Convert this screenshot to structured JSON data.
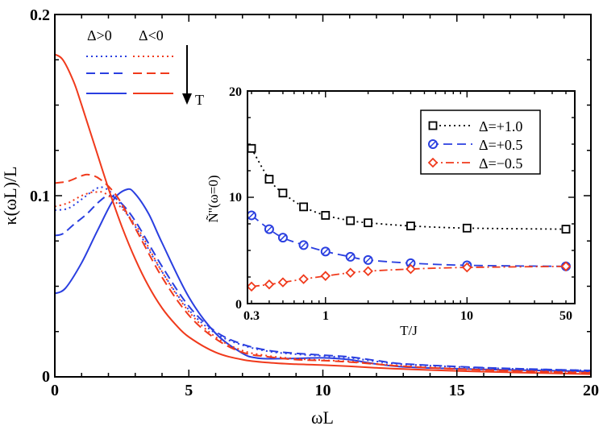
{
  "chart_data": [
    {
      "type": "line",
      "xlabel": "ωL",
      "ylabel": "κ(ωL)/L",
      "xlim": [
        0,
        20
      ],
      "ylim": [
        0,
        0.2
      ],
      "x_ticks": [
        "0",
        "5",
        "10",
        "15",
        "20"
      ],
      "y_ticks": [
        "0",
        "0.1",
        "0.2"
      ],
      "legend": {
        "placement": "top-left",
        "col_headers": [
          "Δ>0",
          "Δ<0"
        ],
        "arrow_label": "T"
      },
      "colors": {
        "positive": "#2a3fe0",
        "negative": "#f03a1c"
      },
      "series": [
        {
          "group": "Δ>0",
          "style": "dotted",
          "points": [
            [
              0,
              0.092
            ],
            [
              0.5,
              0.093
            ],
            [
              1,
              0.098
            ],
            [
              1.5,
              0.1035
            ],
            [
              1.8,
              0.1045
            ],
            [
              2.2,
              0.1
            ],
            [
              3,
              0.083
            ],
            [
              4,
              0.058
            ],
            [
              5,
              0.037
            ],
            [
              6,
              0.024
            ],
            [
              7,
              0.0175
            ],
            [
              8,
              0.014
            ],
            [
              9,
              0.0125
            ],
            [
              10,
              0.0115
            ],
            [
              11,
              0.0105
            ],
            [
              12,
              0.0085
            ],
            [
              13,
              0.007
            ],
            [
              15,
              0.0055
            ],
            [
              17,
              0.0045
            ],
            [
              20,
              0.0035
            ]
          ]
        },
        {
          "group": "Δ>0",
          "style": "dashed",
          "points": [
            [
              0,
              0.078
            ],
            [
              0.3,
              0.079
            ],
            [
              0.7,
              0.084
            ],
            [
              1.2,
              0.09
            ],
            [
              1.6,
              0.096
            ],
            [
              2,
              0.1
            ],
            [
              2.4,
              0.097
            ],
            [
              3,
              0.086
            ],
            [
              4,
              0.061
            ],
            [
              5,
              0.039
            ],
            [
              6,
              0.025
            ],
            [
              7,
              0.018
            ],
            [
              8,
              0.0145
            ],
            [
              9,
              0.013
            ],
            [
              10,
              0.012
            ],
            [
              11,
              0.011
            ],
            [
              12,
              0.009
            ],
            [
              13,
              0.0072
            ],
            [
              15,
              0.0057
            ],
            [
              17,
              0.0046
            ],
            [
              20,
              0.0035
            ]
          ]
        },
        {
          "group": "Δ>0",
          "style": "solid",
          "points": [
            [
              0,
              0.046
            ],
            [
              0.4,
              0.049
            ],
            [
              1,
              0.063
            ],
            [
              1.6,
              0.081
            ],
            [
              2.2,
              0.098
            ],
            [
              2.7,
              0.1035
            ],
            [
              3,
              0.101
            ],
            [
              3.5,
              0.09
            ],
            [
              4,
              0.074
            ],
            [
              5,
              0.044
            ],
            [
              6,
              0.024
            ],
            [
              7,
              0.013
            ],
            [
              7.5,
              0.0105
            ],
            [
              8,
              0.01
            ],
            [
              9,
              0.0102
            ],
            [
              10,
              0.0105
            ],
            [
              11,
              0.0095
            ],
            [
              11.8,
              0.0075
            ],
            [
              13,
              0.0055
            ],
            [
              15,
              0.0045
            ],
            [
              17,
              0.0038
            ],
            [
              20,
              0.003
            ]
          ]
        },
        {
          "group": "Δ<0",
          "style": "dotted",
          "points": [
            [
              0,
              0.094
            ],
            [
              0.5,
              0.096
            ],
            [
              1,
              0.1
            ],
            [
              1.5,
              0.102
            ],
            [
              2,
              0.1
            ],
            [
              3,
              0.084
            ],
            [
              4,
              0.058
            ],
            [
              5,
              0.036
            ],
            [
              6,
              0.022
            ],
            [
              7,
              0.0145
            ],
            [
              8,
              0.0115
            ],
            [
              9,
              0.01
            ],
            [
              10,
              0.0092
            ],
            [
              11,
              0.0085
            ],
            [
              12,
              0.0072
            ],
            [
              13,
              0.006
            ],
            [
              15,
              0.0045
            ],
            [
              17,
              0.0035
            ],
            [
              20,
              0.0025
            ]
          ]
        },
        {
          "group": "Δ<0",
          "style": "dashed",
          "points": [
            [
              0,
              0.107
            ],
            [
              0.5,
              0.108
            ],
            [
              1,
              0.111
            ],
            [
              1.3,
              0.1115
            ],
            [
              1.7,
              0.109
            ],
            [
              2.3,
              0.1
            ],
            [
              3,
              0.082
            ],
            [
              4,
              0.055
            ],
            [
              5,
              0.034
            ],
            [
              6,
              0.021
            ],
            [
              7,
              0.0135
            ],
            [
              8,
              0.011
            ],
            [
              9,
              0.0095
            ],
            [
              10,
              0.009
            ],
            [
              11,
              0.0082
            ],
            [
              12,
              0.007
            ],
            [
              13,
              0.0058
            ],
            [
              15,
              0.0043
            ],
            [
              17,
              0.0033
            ],
            [
              20,
              0.0022
            ]
          ]
        },
        {
          "group": "Δ<0",
          "style": "solid",
          "points": [
            [
              0,
              0.178
            ],
            [
              0.3,
              0.175
            ],
            [
              0.7,
              0.163
            ],
            [
              1,
              0.15
            ],
            [
              1.5,
              0.127
            ],
            [
              2,
              0.104
            ],
            [
              2.5,
              0.083
            ],
            [
              3,
              0.065
            ],
            [
              3.5,
              0.05
            ],
            [
              4,
              0.038
            ],
            [
              4.5,
              0.029
            ],
            [
              5,
              0.022
            ],
            [
              6,
              0.0135
            ],
            [
              7,
              0.0095
            ],
            [
              8,
              0.0078
            ],
            [
              9,
              0.007
            ],
            [
              10,
              0.0065
            ],
            [
              11,
              0.0058
            ],
            [
              12,
              0.005
            ],
            [
              13,
              0.0043
            ],
            [
              15,
              0.0033
            ],
            [
              17,
              0.0025
            ],
            [
              20,
              0.0015
            ]
          ]
        }
      ]
    },
    {
      "type": "line",
      "xlabel": "T/J",
      "ylabel": "Ñ''(ω=0)",
      "xscale": "log",
      "xlim": [
        0.3,
        50
      ],
      "ylim": [
        0,
        20
      ],
      "x_ticks": [
        "0.3",
        "1",
        "10",
        "50"
      ],
      "y_ticks": [
        "0",
        "10",
        "20"
      ],
      "legend_placement": "top-right",
      "series": [
        {
          "name": "Δ=+1.0",
          "color": "#000000",
          "style": "dotted",
          "marker": "square",
          "points": [
            [
              0.3,
              14.6
            ],
            [
              0.4,
              11.7
            ],
            [
              0.5,
              10.4
            ],
            [
              0.7,
              9.1
            ],
            [
              1,
              8.3
            ],
            [
              1.5,
              7.8
            ],
            [
              2,
              7.6
            ],
            [
              4,
              7.3
            ],
            [
              10,
              7.1
            ],
            [
              50,
              7.0
            ]
          ]
        },
        {
          "name": "Δ=+0.5",
          "color": "#2a3fe0",
          "style": "dashed",
          "marker": "circle",
          "points": [
            [
              0.3,
              8.3
            ],
            [
              0.4,
              7.0
            ],
            [
              0.5,
              6.2
            ],
            [
              0.7,
              5.5
            ],
            [
              1,
              4.9
            ],
            [
              1.5,
              4.4
            ],
            [
              2,
              4.1
            ],
            [
              4,
              3.8
            ],
            [
              10,
              3.6
            ],
            [
              50,
              3.5
            ]
          ]
        },
        {
          "name": "Δ=−0.5",
          "color": "#f03a1c",
          "style": "dashdot",
          "marker": "diamond",
          "points": [
            [
              0.3,
              1.6
            ],
            [
              0.4,
              1.8
            ],
            [
              0.5,
              2.0
            ],
            [
              0.7,
              2.3
            ],
            [
              1,
              2.6
            ],
            [
              1.5,
              2.9
            ],
            [
              2,
              3.05
            ],
            [
              4,
              3.25
            ],
            [
              10,
              3.4
            ],
            [
              50,
              3.5
            ]
          ]
        }
      ]
    }
  ]
}
